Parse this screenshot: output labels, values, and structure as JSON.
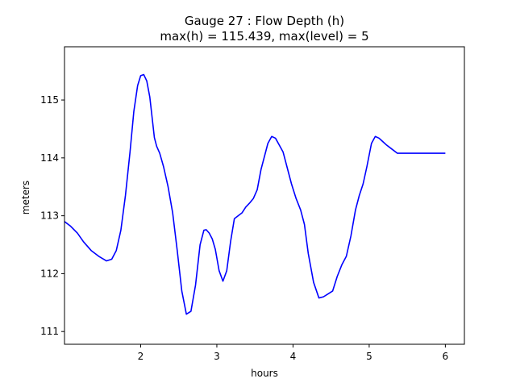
{
  "chart_data": {
    "type": "line",
    "title_line1": "Gauge 27 : Flow Depth (h)",
    "title_line2": "max(h) = 115.439,    max(level) = 5",
    "xlabel": "hours",
    "ylabel": "meters",
    "xlim": [
      1.0,
      6.25
    ],
    "ylim": [
      110.78,
      115.92
    ],
    "xticks": [
      2,
      3,
      4,
      5,
      6
    ],
    "xtick_labels": [
      "2",
      "3",
      "4",
      "5",
      "6"
    ],
    "yticks": [
      111,
      112,
      113,
      114,
      115
    ],
    "ytick_labels": [
      "111",
      "112",
      "113",
      "114",
      "115"
    ],
    "grid": false,
    "series": [
      {
        "color": "#0000ff",
        "x": [
          1.0,
          1.08,
          1.17,
          1.25,
          1.35,
          1.45,
          1.55,
          1.62,
          1.68,
          1.74,
          1.8,
          1.86,
          1.91,
          1.96,
          2.0,
          2.04,
          2.08,
          2.12,
          2.15,
          2.18,
          2.21,
          2.25,
          2.3,
          2.36,
          2.42,
          2.48,
          2.54,
          2.6,
          2.66,
          2.72,
          2.78,
          2.83,
          2.86,
          2.9,
          2.94,
          2.98,
          3.03,
          3.08,
          3.13,
          3.18,
          3.23,
          3.28,
          3.33,
          3.38,
          3.43,
          3.48,
          3.53,
          3.58,
          3.63,
          3.67,
          3.72,
          3.77,
          3.82,
          3.87,
          3.92,
          3.98,
          4.04,
          4.1,
          4.15,
          4.2,
          4.27,
          4.34,
          4.4,
          4.46,
          4.52,
          4.58,
          4.64,
          4.7,
          4.76,
          4.82,
          4.87,
          4.92,
          4.97,
          5.03,
          5.08,
          5.13,
          5.18,
          5.23,
          5.3,
          5.37,
          5.44,
          5.5,
          5.56,
          5.62,
          5.67,
          5.72,
          5.77,
          5.8,
          5.84,
          5.88,
          5.92,
          5.96,
          6.0
        ],
        "y": [
          112.9,
          112.82,
          112.7,
          112.55,
          112.4,
          112.3,
          112.22,
          112.25,
          112.4,
          112.75,
          113.35,
          114.1,
          114.8,
          115.25,
          115.42,
          115.44,
          115.33,
          115.05,
          114.7,
          114.35,
          114.2,
          114.08,
          113.85,
          113.5,
          113.05,
          112.4,
          111.7,
          111.3,
          111.35,
          111.8,
          112.5,
          112.75,
          112.76,
          112.7,
          112.6,
          112.42,
          112.05,
          111.87,
          112.05,
          112.55,
          112.95,
          113.0,
          113.05,
          113.15,
          113.22,
          113.3,
          113.45,
          113.8,
          114.05,
          114.25,
          114.37,
          114.34,
          114.22,
          114.1,
          113.85,
          113.55,
          113.3,
          113.1,
          112.85,
          112.35,
          111.85,
          111.58,
          111.6,
          111.65,
          111.7,
          111.95,
          112.15,
          112.3,
          112.65,
          113.1,
          113.35,
          113.55,
          113.85,
          114.25,
          114.37,
          114.34,
          114.28,
          114.22,
          114.15,
          114.08,
          114.08,
          114.08,
          114.08,
          114.08,
          114.08,
          114.08,
          114.08,
          114.08,
          114.08,
          114.08,
          114.08,
          114.08,
          114.08
        ]
      }
    ]
  }
}
